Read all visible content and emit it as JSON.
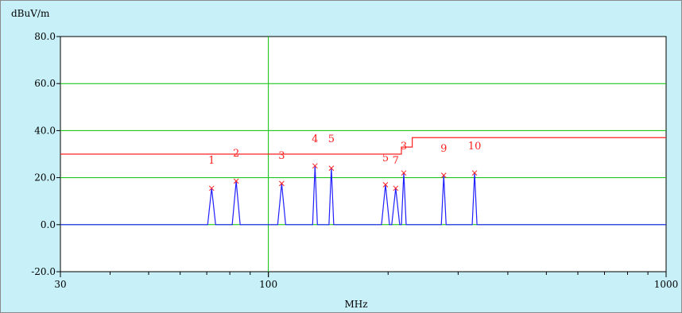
{
  "chart_data": {
    "type": "line",
    "title": "",
    "ylabel": "dBuV/m",
    "xlabel": "MHz",
    "x_scale": "log",
    "xlim": [
      30,
      1000
    ],
    "ylim": [
      -20,
      80
    ],
    "y_ticks": [
      -20,
      0,
      20,
      40,
      60,
      80
    ],
    "y_tick_labels": [
      "-20.0",
      "0.0",
      "20.0",
      "40.0",
      "60.0",
      "80.0"
    ],
    "x_tick_labels": [
      {
        "value": 30,
        "label": "30"
      },
      {
        "value": 100,
        "label": "100"
      },
      {
        "value": 1000,
        "label": "1000"
      }
    ],
    "grid": true,
    "colors": {
      "background": "#c8f0f8",
      "plot_background": "#ffffff",
      "grid": "#00c000",
      "limit_line": "#ff2020",
      "trace": "#2020ff",
      "markers": "#ff2020"
    },
    "limit_line": {
      "x": [
        30,
        216,
        216,
        230,
        230,
        1000
      ],
      "y": [
        30,
        30,
        33,
        33,
        37,
        37
      ]
    },
    "trace": {
      "baseline": 0,
      "peaks": [
        {
          "freq": 72,
          "level": 15.5
        },
        {
          "freq": 83,
          "level": 18.5
        },
        {
          "freq": 108,
          "level": 17.5
        },
        {
          "freq": 131,
          "level": 25
        },
        {
          "freq": 144,
          "level": 24
        },
        {
          "freq": 197,
          "level": 17
        },
        {
          "freq": 209,
          "level": 15.5
        },
        {
          "freq": 219,
          "level": 22
        },
        {
          "freq": 276,
          "level": 21
        },
        {
          "freq": 330,
          "level": 22
        }
      ]
    },
    "markers": [
      {
        "label": "1",
        "freq": 72,
        "level": 15.5,
        "label_level": 26
      },
      {
        "label": "2",
        "freq": 83,
        "level": 18.5,
        "label_level": 29
      },
      {
        "label": "3",
        "freq": 108,
        "level": 17.5,
        "label_level": 28
      },
      {
        "label": "4",
        "freq": 131,
        "level": 25,
        "label_level": 35
      },
      {
        "label": "5",
        "freq": 144,
        "level": 24,
        "label_level": 35
      },
      {
        "label": "5",
        "freq": 197,
        "level": 17,
        "label_level": 27
      },
      {
        "label": "7",
        "freq": 209,
        "level": 15.5,
        "label_level": 26
      },
      {
        "label": "3",
        "freq": 219,
        "level": 22,
        "label_level": 32
      },
      {
        "label": "9",
        "freq": 276,
        "level": 21,
        "label_level": 31
      },
      {
        "label": "10",
        "freq": 330,
        "level": 22,
        "label_level": 32
      }
    ]
  }
}
